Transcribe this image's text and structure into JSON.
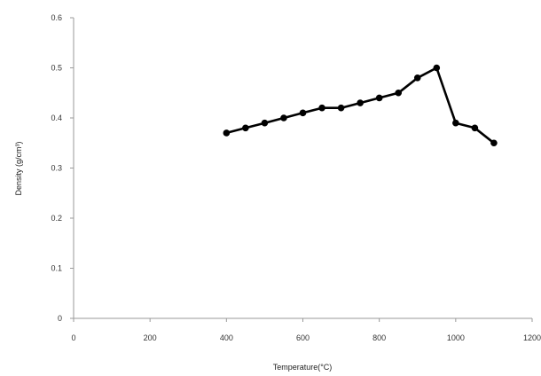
{
  "chart_data": {
    "type": "line",
    "title": "",
    "xlabel": "Temperature(°C)",
    "ylabel": "Density (g/cm³)",
    "xlim": [
      0,
      1200
    ],
    "ylim": [
      0,
      0.6
    ],
    "x_ticks": [
      "0",
      "200",
      "400",
      "600",
      "800",
      "1000",
      "1200"
    ],
    "y_ticks": [
      "0",
      "0.1",
      "0.2",
      "0.3",
      "0.4",
      "0.5",
      "0.6"
    ],
    "grid": false,
    "legend": "none",
    "series": [
      {
        "color": "#000000",
        "marker": "circle",
        "points": [
          {
            "x": 400,
            "y": 0.37
          },
          {
            "x": 450,
            "y": 0.38
          },
          {
            "x": 500,
            "y": 0.39
          },
          {
            "x": 550,
            "y": 0.4
          },
          {
            "x": 600,
            "y": 0.41
          },
          {
            "x": 650,
            "y": 0.42
          },
          {
            "x": 700,
            "y": 0.42
          },
          {
            "x": 750,
            "y": 0.43
          },
          {
            "x": 800,
            "y": 0.44
          },
          {
            "x": 850,
            "y": 0.45
          },
          {
            "x": 900,
            "y": 0.48
          },
          {
            "x": 950,
            "y": 0.5
          },
          {
            "x": 1000,
            "y": 0.39
          },
          {
            "x": 1050,
            "y": 0.38
          },
          {
            "x": 1100,
            "y": 0.35
          }
        ]
      }
    ]
  }
}
